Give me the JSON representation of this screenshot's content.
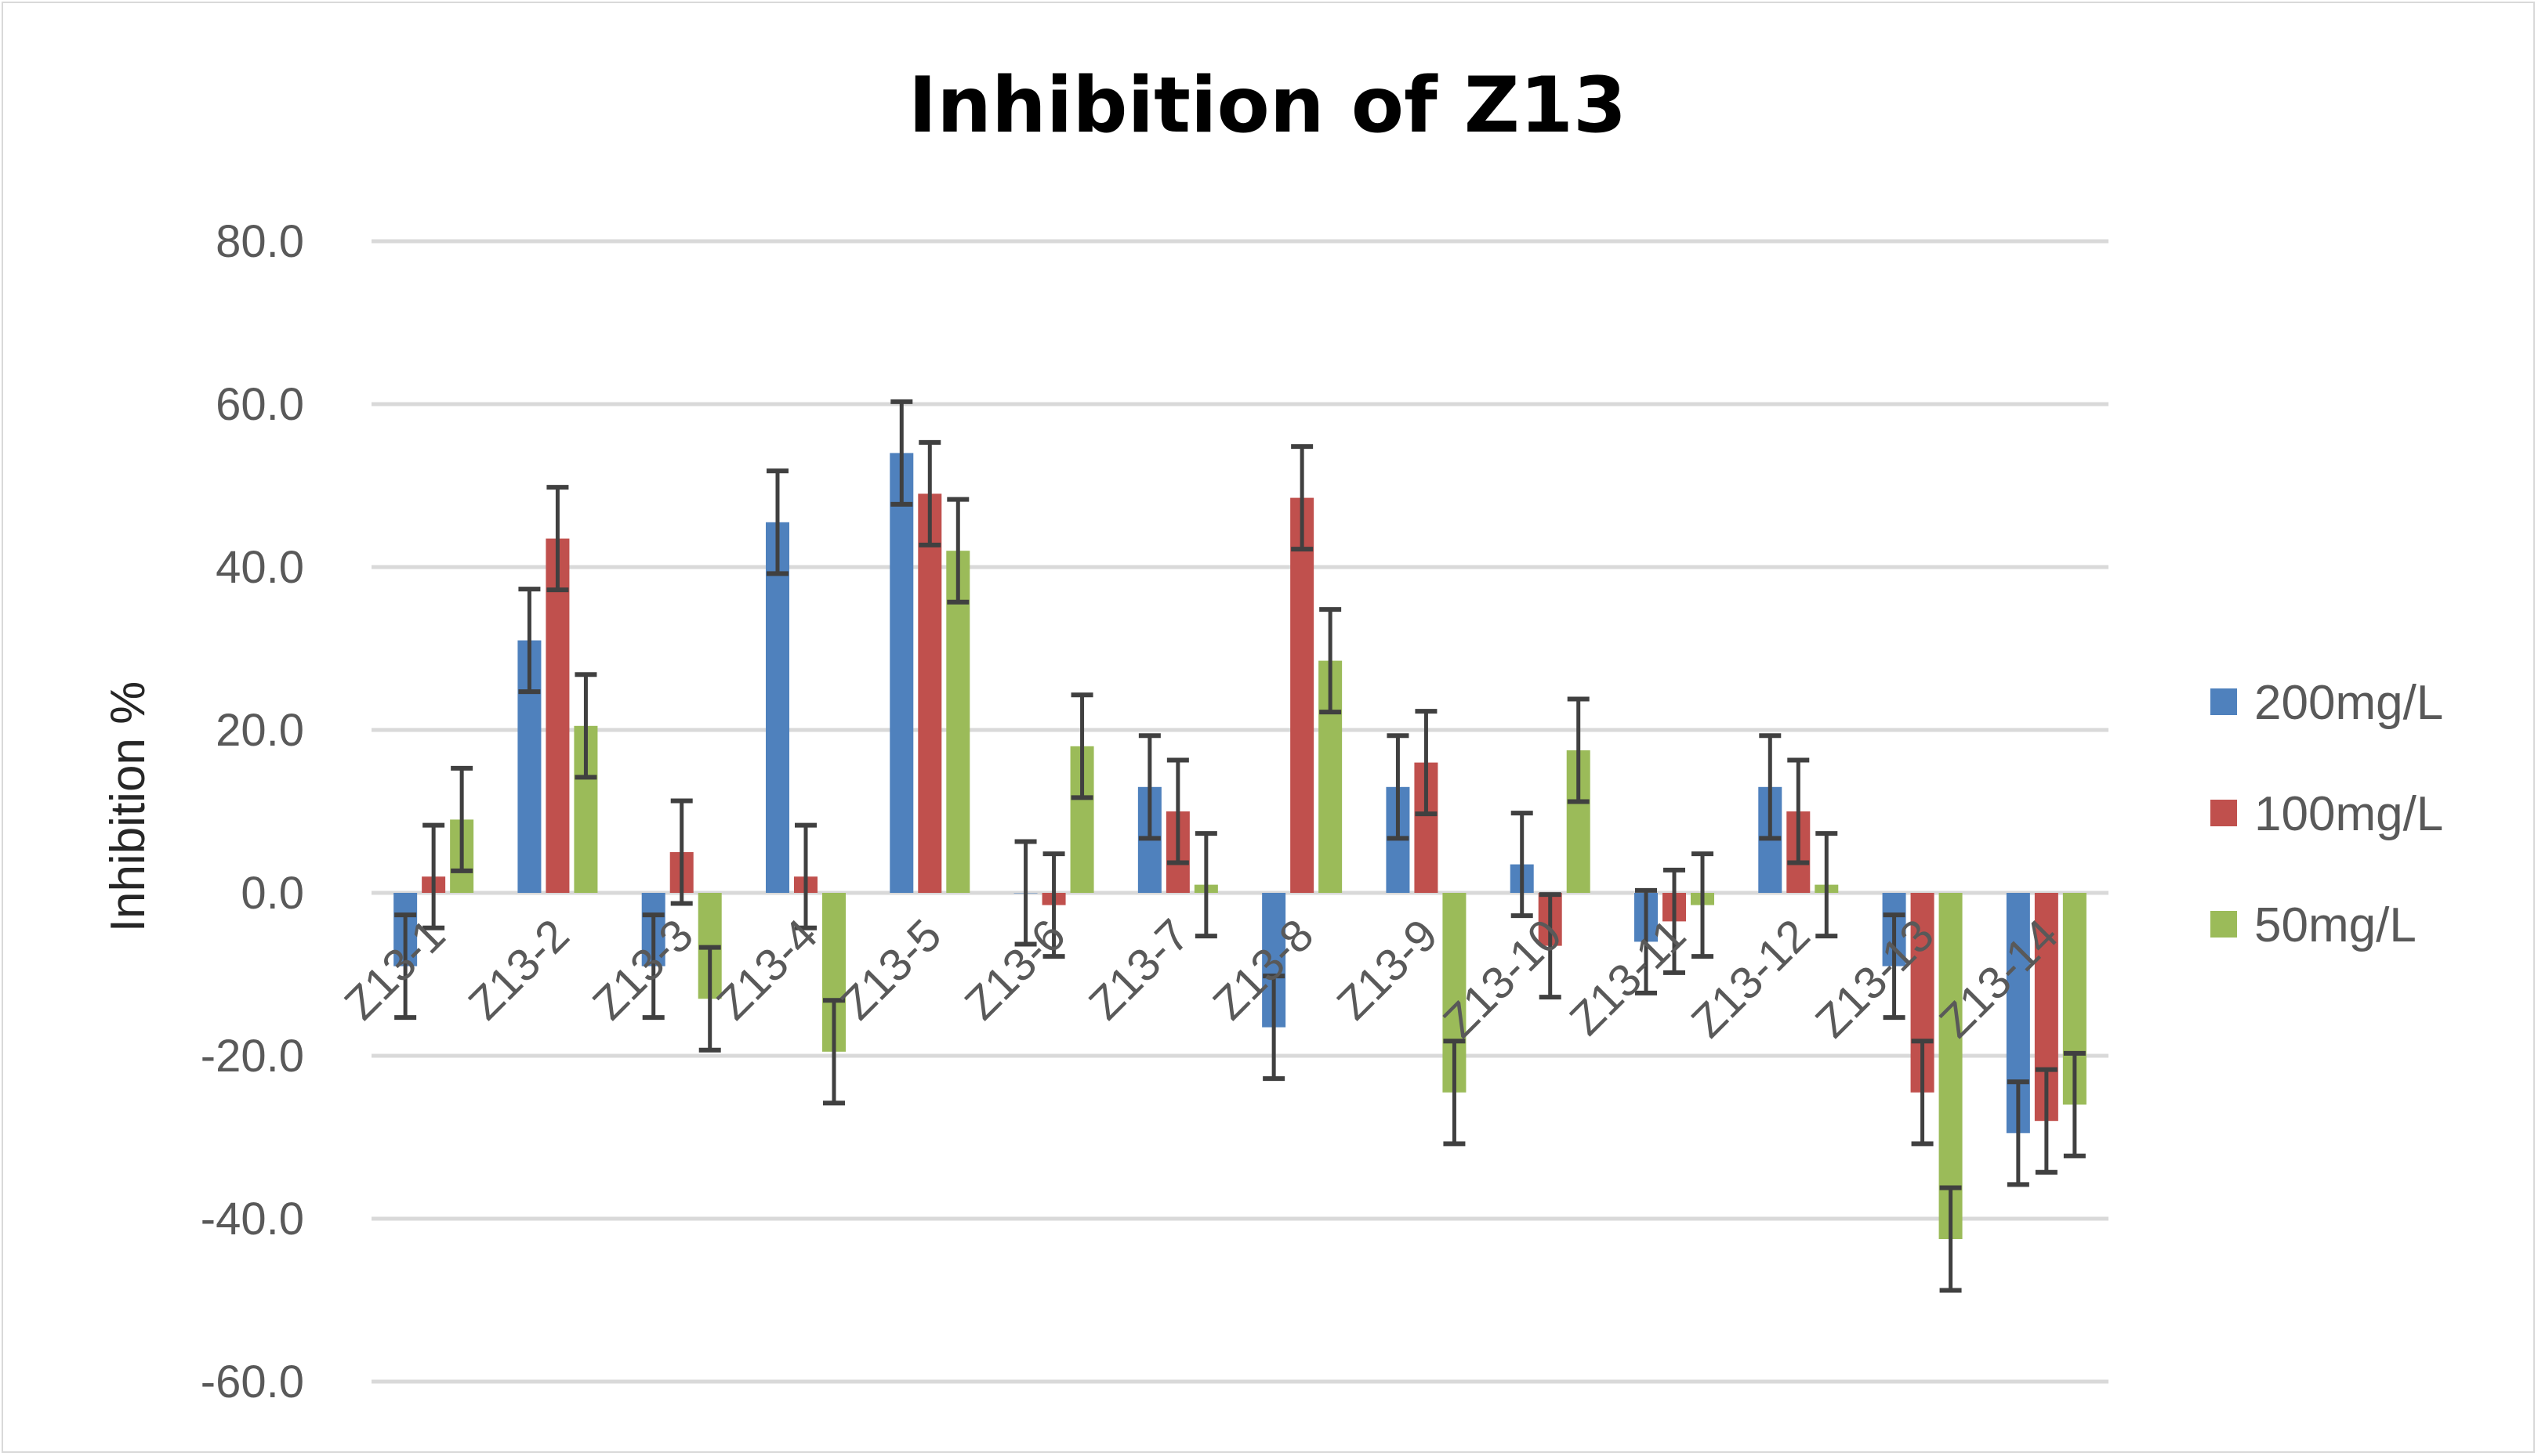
{
  "chart_data": {
    "type": "bar",
    "title": "Inhibition of Z13",
    "xlabel": "",
    "ylabel": "Inhibition %",
    "ylim": [
      -60,
      80
    ],
    "ytick_step": 20,
    "ytick_labels": [
      "80.0",
      "60.0",
      "40.0",
      "20.0",
      "0.0",
      "-20.0",
      "-40.0",
      "-60.0"
    ],
    "grid": true,
    "legend_position": "right",
    "categories": [
      "Z13-1",
      "Z13-2",
      "Z13-3",
      "Z13-4",
      "Z13-5",
      "Z13-6",
      "Z13-7",
      "Z13-8",
      "Z13-9",
      "Z13-10",
      "Z13-11",
      "Z13-12",
      "Z13-13",
      "Z13-14"
    ],
    "series": [
      {
        "name": "200mg/L",
        "color": "#4f81bd",
        "values": [
          -9.0,
          31.0,
          -9.0,
          45.5,
          54.0,
          0.0,
          13.0,
          -16.5,
          13.0,
          3.5,
          -6.0,
          13.0,
          -9.0,
          -29.5
        ],
        "errors": [
          6.3,
          6.3,
          6.3,
          6.3,
          6.3,
          6.3,
          6.3,
          6.3,
          6.3,
          6.3,
          6.3,
          6.3,
          6.3,
          6.3
        ]
      },
      {
        "name": "100mg/L",
        "color": "#c0504d",
        "values": [
          2.0,
          43.5,
          5.0,
          2.0,
          49.0,
          -1.5,
          10.0,
          48.5,
          16.0,
          -6.5,
          -3.5,
          10.0,
          -24.5,
          -28.0
        ],
        "errors": [
          6.3,
          6.3,
          6.3,
          6.3,
          6.3,
          6.3,
          6.3,
          6.3,
          6.3,
          6.3,
          6.3,
          6.3,
          6.3,
          6.3
        ]
      },
      {
        "name": "50mg/L",
        "color": "#9bbb59",
        "values": [
          9.0,
          20.5,
          -13.0,
          -19.5,
          42.0,
          18.0,
          1.0,
          28.5,
          -24.5,
          17.5,
          -1.5,
          1.0,
          -42.5,
          -26.0
        ],
        "errors": [
          6.3,
          6.3,
          6.3,
          6.3,
          6.3,
          6.3,
          6.3,
          6.3,
          6.3,
          6.3,
          6.3,
          6.3,
          6.3,
          6.3
        ]
      }
    ],
    "colors": {
      "gridline": "#d9d9d9",
      "error_bar": "#404040"
    }
  }
}
